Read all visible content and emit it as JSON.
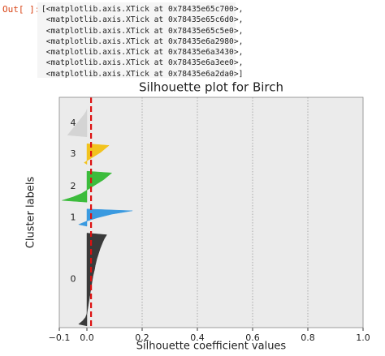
{
  "output_prompt": "Out[ ]:",
  "output_lines": [
    "[<matplotlib.axis.XTick at 0x78435e65c700>,",
    " <matplotlib.axis.XTick at 0x78435e65c6d0>,",
    " <matplotlib.axis.XTick at 0x78435e65c5e0>,",
    " <matplotlib.axis.XTick at 0x78435e6a2980>,",
    " <matplotlib.axis.XTick at 0x78435e6a3430>,",
    " <matplotlib.axis.XTick at 0x78435e6a3ee0>,",
    " <matplotlib.axis.XTick at 0x78435e6a2da0>]"
  ],
  "chart_data": {
    "type": "silhouette",
    "title": "Silhouette plot for Birch",
    "x_label": "Silhouette coefficient values",
    "y_label": "Cluster labels",
    "xlim": [
      -0.1,
      1.0
    ],
    "xticks": [
      {
        "value": -0.1,
        "label": "−0.1"
      },
      {
        "value": 0.0,
        "label": "0.0"
      },
      {
        "value": 0.2,
        "label": "0.2"
      },
      {
        "value": 0.4,
        "label": "0.4"
      },
      {
        "value": 0.6,
        "label": "0.6"
      },
      {
        "value": 0.8,
        "label": "0.8"
      },
      {
        "value": 1.0,
        "label": "1.0"
      }
    ],
    "grid": true,
    "average": 0.015,
    "average_color": "#dd1111",
    "series": [
      {
        "name": "0",
        "color": "#3a3a3a",
        "values": [
          -0.03,
          -0.015,
          -0.005,
          0.0,
          0.002,
          0.004,
          0.006,
          0.008,
          0.01,
          0.012,
          0.014,
          0.016,
          0.018,
          0.02,
          0.022,
          0.025,
          0.028,
          0.03,
          0.033,
          0.036,
          0.04,
          0.044,
          0.048,
          0.053,
          0.058,
          0.064,
          0.072
        ]
      },
      {
        "name": "1",
        "color": "#3a9ae0",
        "values": [
          -0.03,
          0.0,
          0.04,
          0.09,
          0.165
        ]
      },
      {
        "name": "2",
        "color": "#3cbc3c",
        "values": [
          -0.09,
          -0.05,
          -0.02,
          0.0,
          0.02,
          0.04,
          0.06,
          0.075,
          0.09
        ]
      },
      {
        "name": "3",
        "color": "#f2c31e",
        "values": [
          -0.01,
          0.01,
          0.03,
          0.05,
          0.065,
          0.08
        ]
      },
      {
        "name": "4",
        "color": "#d4d4d4",
        "values": [
          -0.07,
          -0.06,
          -0.05,
          -0.04,
          -0.03,
          -0.02,
          -0.01,
          -0.002
        ]
      }
    ]
  }
}
